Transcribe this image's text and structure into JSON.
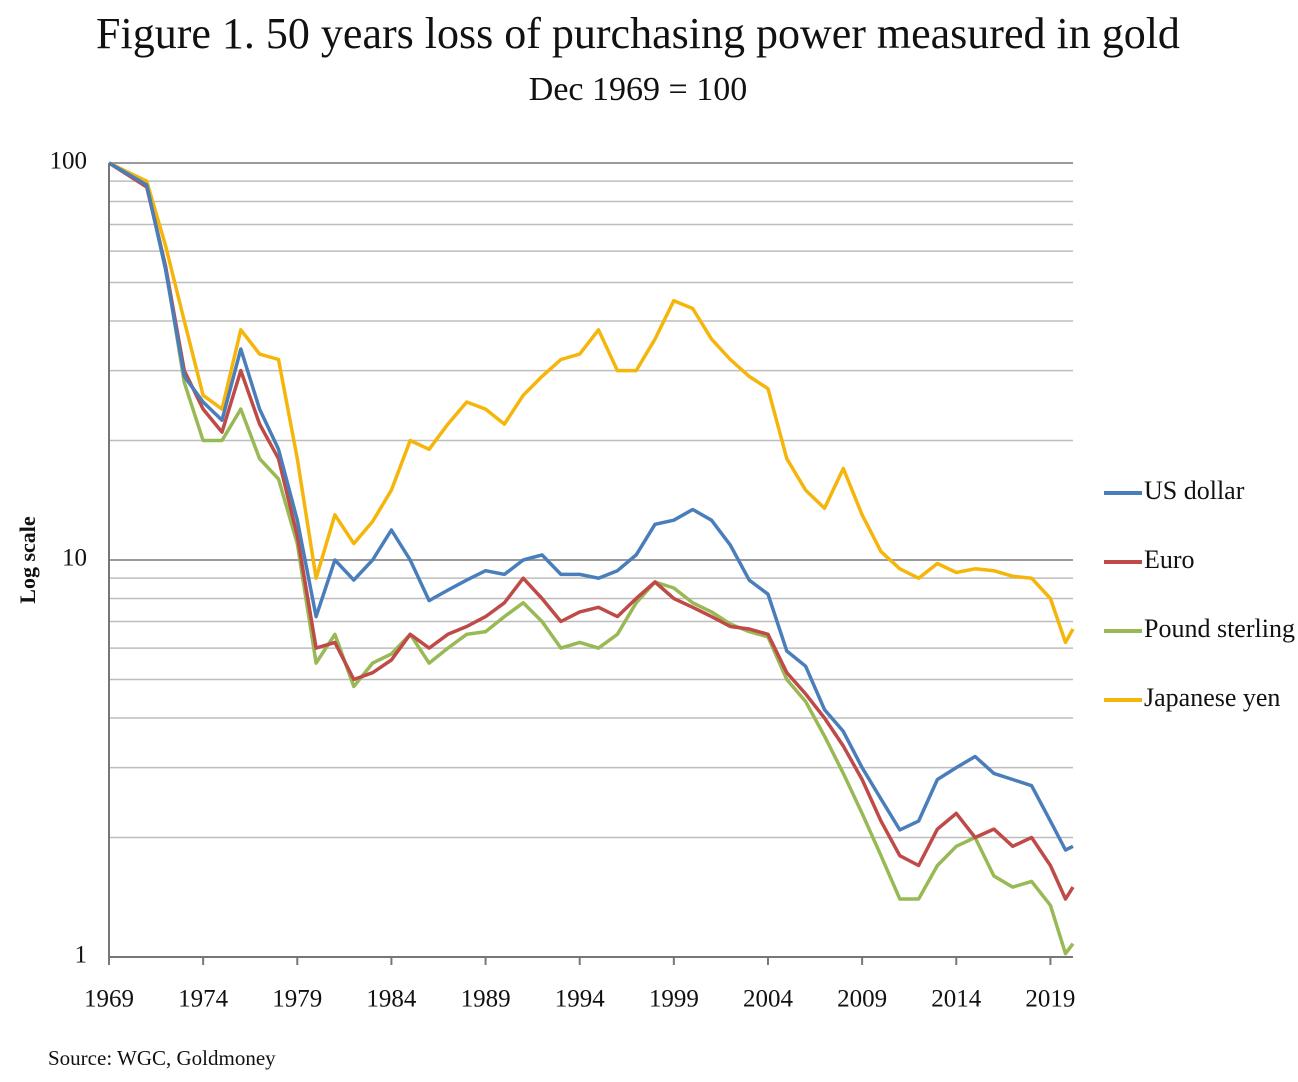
{
  "chart_data": {
    "type": "line",
    "title": "Figure 1. 50 years loss of purchasing power measured in gold",
    "subtitle": "Dec 1969 = 100",
    "y_label": "Log scale",
    "source": "Source: WGC, Goldmoney",
    "log_y": true,
    "grid": true,
    "minor_grid": true,
    "legend": "right",
    "xlim": [
      1969,
      2020.2
    ],
    "xticks": [
      1969,
      1974,
      1979,
      1984,
      1989,
      1994,
      1999,
      2004,
      2009,
      2014,
      2019
    ],
    "ylim": [
      1,
      100
    ],
    "yticks": [
      1,
      10,
      100
    ],
    "x": [
      1969,
      1971,
      1972,
      1973,
      1974,
      1975,
      1976,
      1977,
      1978,
      1979,
      1980,
      1981,
      1982,
      1983,
      1984,
      1985,
      1986,
      1987,
      1988,
      1989,
      1990,
      1991,
      1992,
      1993,
      1994,
      1995,
      1996,
      1997,
      1998,
      1999,
      2000,
      2001,
      2002,
      2003,
      2004,
      2005,
      2006,
      2007,
      2008,
      2009,
      2010,
      2011,
      2012,
      2013,
      2014,
      2015,
      2016,
      2017,
      2018,
      2019,
      2019.8,
      2020.2
    ],
    "series": [
      {
        "name": "US dollar",
        "color": "#4a7ebb",
        "values": [
          100,
          88,
          54,
          29,
          25,
          22.5,
          34,
          24,
          19,
          12.6,
          7.2,
          10,
          8.9,
          10,
          11.9,
          10,
          7.9,
          8.4,
          8.9,
          9.4,
          9.2,
          10,
          10.3,
          9.2,
          9.2,
          9.0,
          9.4,
          10.3,
          12.3,
          12.6,
          13.4,
          12.6,
          10.9,
          8.9,
          8.2,
          5.9,
          5.4,
          4.2,
          3.7,
          3.0,
          2.5,
          2.09,
          2.2,
          2.8,
          3.0,
          3.2,
          2.9,
          2.8,
          2.7,
          2.2,
          1.86,
          1.9
        ]
      },
      {
        "name": "Euro",
        "color": "#be4b48",
        "values": [
          100,
          87,
          55,
          30,
          24,
          21,
          30,
          22,
          18,
          11.5,
          6.0,
          6.2,
          5.0,
          5.2,
          5.6,
          6.5,
          6.0,
          6.5,
          6.8,
          7.2,
          7.8,
          9.0,
          8.0,
          7.0,
          7.4,
          7.6,
          7.2,
          8.0,
          8.8,
          8.0,
          7.6,
          7.2,
          6.8,
          6.7,
          6.5,
          5.2,
          4.6,
          4.0,
          3.4,
          2.8,
          2.2,
          1.8,
          1.7,
          2.1,
          2.3,
          2.0,
          2.1,
          1.9,
          2.0,
          1.7,
          1.4,
          1.5
        ]
      },
      {
        "name": "Pound sterling",
        "color": "#98b954",
        "values": [
          100,
          88,
          55,
          28,
          20,
          20,
          24,
          18,
          16,
          11,
          5.5,
          6.5,
          4.8,
          5.5,
          5.8,
          6.5,
          5.5,
          6.0,
          6.5,
          6.6,
          7.2,
          7.8,
          7.0,
          6.0,
          6.2,
          6.0,
          6.5,
          7.8,
          8.8,
          8.5,
          7.8,
          7.4,
          6.9,
          6.6,
          6.4,
          5.0,
          4.4,
          3.6,
          2.9,
          2.3,
          1.8,
          1.4,
          1.4,
          1.7,
          1.9,
          2.0,
          1.6,
          1.5,
          1.55,
          1.35,
          1.02,
          1.08
        ]
      },
      {
        "name": "Japanese yen",
        "color": "#f5b50a",
        "values": [
          100,
          90,
          62,
          40,
          26,
          24,
          38,
          33,
          32,
          18,
          9.0,
          13,
          11,
          12.5,
          15,
          20,
          19,
          22,
          25,
          24,
          22,
          26,
          29,
          32,
          33,
          38,
          30,
          30,
          36,
          45,
          43,
          36,
          32,
          29,
          27,
          18,
          15,
          13.5,
          17,
          13,
          10.5,
          9.5,
          9.0,
          9.8,
          9.3,
          9.5,
          9.4,
          9.1,
          9.0,
          8.0,
          6.2,
          6.7
        ]
      }
    ]
  }
}
